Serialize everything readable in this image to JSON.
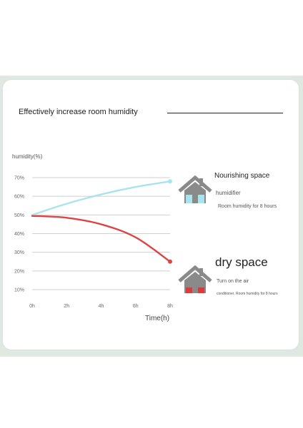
{
  "headline": "Effectively increase room humidity",
  "chart_data": {
    "type": "line",
    "ylabel": "humidity(%)",
    "xlabel": "Time(h)",
    "x_ticks": [
      "0h",
      "2h",
      "4h",
      "6h",
      "8h"
    ],
    "y_ticks": [
      "10%",
      "20%",
      "30%",
      "40%",
      "50%",
      "60%",
      "70%"
    ],
    "ylim": [
      10,
      70
    ],
    "xlim": [
      0,
      8
    ],
    "grid": true,
    "series": [
      {
        "name": "Nourishing space",
        "color": "#a8e4ee",
        "points": [
          [
            0,
            50
          ],
          [
            2,
            56
          ],
          [
            4,
            61
          ],
          [
            6,
            65
          ],
          [
            8,
            68
          ]
        ]
      },
      {
        "name": "dry space",
        "color": "#dd4545",
        "points": [
          [
            0,
            49.5
          ],
          [
            2,
            48.5
          ],
          [
            4,
            45
          ],
          [
            6,
            38
          ],
          [
            8,
            25
          ]
        ]
      }
    ]
  },
  "legend": {
    "wet": {
      "title": "Nourishing space",
      "subtitle": "humidifier",
      "desc": "Room humidity for 8 hours",
      "icon": "house-icon",
      "accent": "#a8e4ee"
    },
    "dry": {
      "title": "dry space",
      "subtitle": "Turn on the air",
      "desc": "conditioner. Room humidity for 8 hours",
      "icon": "house-icon",
      "accent": "#dd3b3b"
    }
  }
}
